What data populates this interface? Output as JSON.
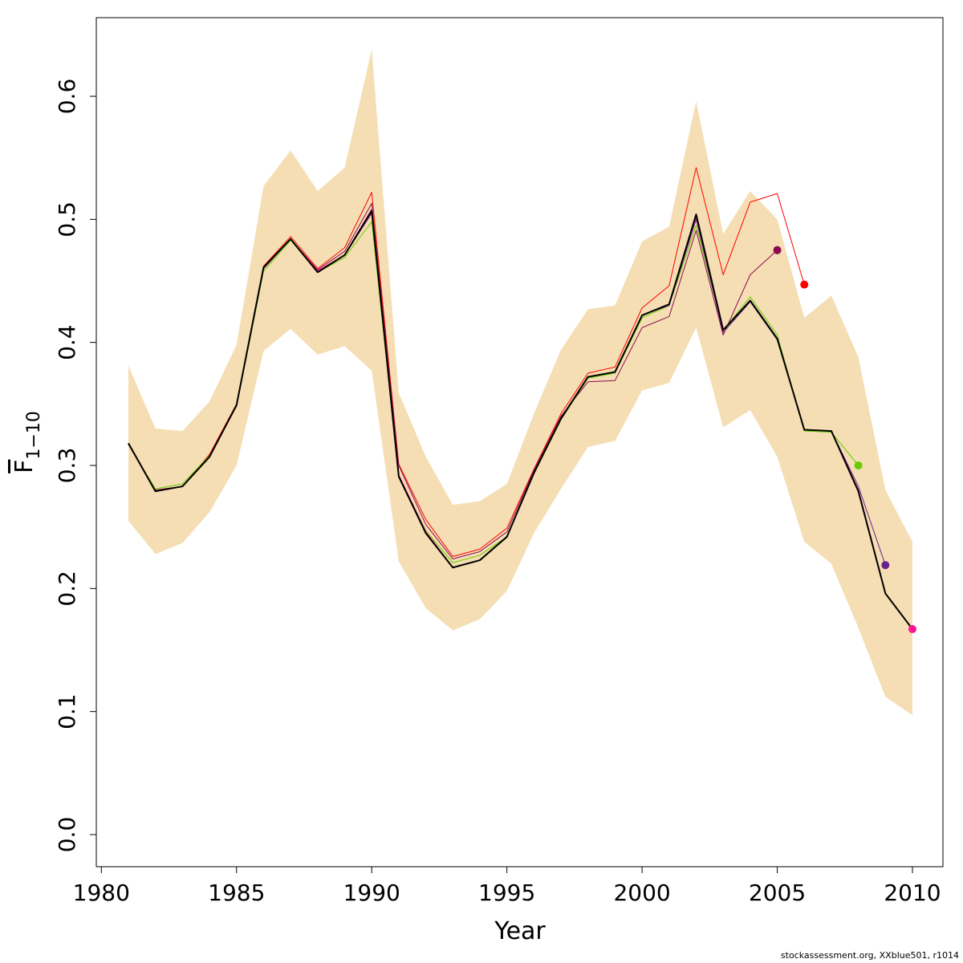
{
  "chart_data": {
    "type": "line",
    "xlabel": "Year",
    "ylabel_main": "F",
    "ylabel_sub": "1−10",
    "xlim": [
      1981,
      2010
    ],
    "ylim": [
      0.0,
      0.6
    ],
    "x_ticks": [
      1980,
      1985,
      1990,
      1995,
      2000,
      2005,
      2010
    ],
    "y_ticks": [
      "0.0",
      "0.1",
      "0.2",
      "0.3",
      "0.4",
      "0.5",
      "0.6"
    ],
    "credit": "stockassessment.org, XXblue501, r1014",
    "band": {
      "x": [
        1981,
        1982,
        1983,
        1984,
        1985,
        1986,
        1987,
        1988,
        1989,
        1990,
        1991,
        1992,
        1993,
        1994,
        1995,
        1996,
        1997,
        1998,
        1999,
        2000,
        2001,
        2002,
        2003,
        2004,
        2005,
        2006,
        2007,
        2008,
        2009,
        2010
      ],
      "lower": [
        0.255,
        0.228,
        0.237,
        0.262,
        0.3,
        0.393,
        0.411,
        0.39,
        0.397,
        0.377,
        0.222,
        0.184,
        0.166,
        0.175,
        0.198,
        0.245,
        0.281,
        0.315,
        0.32,
        0.361,
        0.367,
        0.412,
        0.331,
        0.345,
        0.307,
        0.238,
        0.22,
        0.168,
        0.112,
        0.097
      ],
      "upper": [
        0.381,
        0.33,
        0.328,
        0.352,
        0.398,
        0.527,
        0.556,
        0.523,
        0.542,
        0.638,
        0.359,
        0.307,
        0.268,
        0.271,
        0.285,
        0.342,
        0.394,
        0.427,
        0.43,
        0.482,
        0.494,
        0.596,
        0.488,
        0.523,
        0.5,
        0.42,
        0.438,
        0.388,
        0.28,
        0.238
      ],
      "color": "#F5DEB3"
    },
    "series": [
      {
        "color": "#FF0000",
        "width": 1,
        "x": [
          1981,
          1982,
          1983,
          1984,
          1985,
          1986,
          1987,
          1988,
          1989,
          1990,
          1991,
          1992,
          1993,
          1994,
          1995,
          1996,
          1997,
          1998,
          1999,
          2000,
          2001,
          2002,
          2003,
          2004,
          2005,
          2006
        ],
        "y": [
          0.318,
          0.28,
          0.283,
          0.309,
          0.35,
          0.462,
          0.486,
          0.46,
          0.477,
          0.522,
          0.301,
          0.256,
          0.226,
          0.232,
          0.249,
          0.297,
          0.342,
          0.375,
          0.38,
          0.428,
          0.446,
          0.542,
          0.455,
          0.514,
          0.521,
          0.447
        ],
        "endpoint": true
      },
      {
        "color": "#8B0A50",
        "width": 1,
        "x": [
          1981,
          1982,
          1983,
          1984,
          1985,
          1986,
          1987,
          1988,
          1989,
          1990,
          1991,
          1992,
          1993,
          1994,
          1995,
          1996,
          1997,
          1998,
          1999,
          2000,
          2001,
          2002,
          2003,
          2004,
          2005
        ],
        "y": [
          0.317,
          0.28,
          0.283,
          0.308,
          0.349,
          0.46,
          0.484,
          0.459,
          0.474,
          0.513,
          0.3,
          0.252,
          0.224,
          0.23,
          0.246,
          0.296,
          0.34,
          0.368,
          0.369,
          0.412,
          0.421,
          0.491,
          0.406,
          0.455,
          0.475
        ],
        "endpoint": true
      },
      {
        "color": "#66CD00",
        "width": 1,
        "x": [
          1981,
          1982,
          1983,
          1984,
          1985,
          1986,
          1987,
          1988,
          1989,
          1990,
          1991,
          1992,
          1993,
          1994,
          1995,
          1996,
          1997,
          1998,
          1999,
          2000,
          2001,
          2002,
          2003,
          2004,
          2005,
          2006,
          2007,
          2008
        ],
        "y": [
          0.317,
          0.281,
          0.285,
          0.308,
          0.348,
          0.458,
          0.483,
          0.457,
          0.469,
          0.498,
          0.291,
          0.247,
          0.221,
          0.227,
          0.242,
          0.293,
          0.337,
          0.371,
          0.375,
          0.42,
          0.43,
          0.495,
          0.41,
          0.437,
          0.406,
          0.328,
          0.327,
          0.3
        ],
        "endpoint": true
      },
      {
        "color": "#68228B",
        "width": 1,
        "x": [
          1981,
          1982,
          1983,
          1984,
          1985,
          1986,
          1987,
          1988,
          1989,
          1990,
          1991,
          1992,
          1993,
          1994,
          1995,
          1996,
          1997,
          1998,
          1999,
          2000,
          2001,
          2002,
          2003,
          2004,
          2005,
          2006,
          2007,
          2008,
          2009
        ],
        "y": [
          0.318,
          0.279,
          0.283,
          0.307,
          0.349,
          0.46,
          0.484,
          0.457,
          0.471,
          0.505,
          0.292,
          0.245,
          0.217,
          0.223,
          0.242,
          0.293,
          0.339,
          0.372,
          0.376,
          0.422,
          0.43,
          0.5,
          0.408,
          0.433,
          0.402,
          0.329,
          0.328,
          0.283,
          0.219
        ],
        "endpoint": true
      },
      {
        "color": "#FF1493",
        "width": 1.5,
        "x": [
          1981,
          1982,
          1983,
          1984,
          1985,
          1986,
          1987,
          1988,
          1989,
          1990,
          1991,
          1992,
          1993,
          1994,
          1995,
          1996,
          1997,
          1998,
          1999,
          2000,
          2001,
          2002,
          2003,
          2004,
          2005,
          2006,
          2007,
          2008,
          2009,
          2010
        ],
        "y": [
          0.318,
          0.279,
          0.283,
          0.307,
          0.349,
          0.461,
          0.484,
          0.458,
          0.471,
          0.508,
          0.292,
          0.246,
          0.217,
          0.223,
          0.242,
          0.294,
          0.338,
          0.372,
          0.376,
          0.422,
          0.431,
          0.503,
          0.41,
          0.434,
          0.403,
          0.329,
          0.328,
          0.28,
          0.196,
          0.167
        ],
        "endpoint": true
      },
      {
        "color": "#000000",
        "width": 2,
        "x": [
          1981,
          1982,
          1983,
          1984,
          1985,
          1986,
          1987,
          1988,
          1989,
          1990,
          1991,
          1992,
          1993,
          1994,
          1995,
          1996,
          1997,
          1998,
          1999,
          2000,
          2001,
          2002,
          2003,
          2004,
          2005,
          2006,
          2007,
          2008,
          2009,
          2010
        ],
        "y": [
          0.318,
          0.279,
          0.283,
          0.307,
          0.349,
          0.461,
          0.484,
          0.457,
          0.471,
          0.507,
          0.291,
          0.245,
          0.217,
          0.223,
          0.242,
          0.294,
          0.338,
          0.372,
          0.376,
          0.422,
          0.431,
          0.504,
          0.41,
          0.434,
          0.403,
          0.329,
          0.328,
          0.279,
          0.196,
          0.167
        ],
        "endpoint": false
      }
    ],
    "grid": false,
    "legend": "none"
  }
}
